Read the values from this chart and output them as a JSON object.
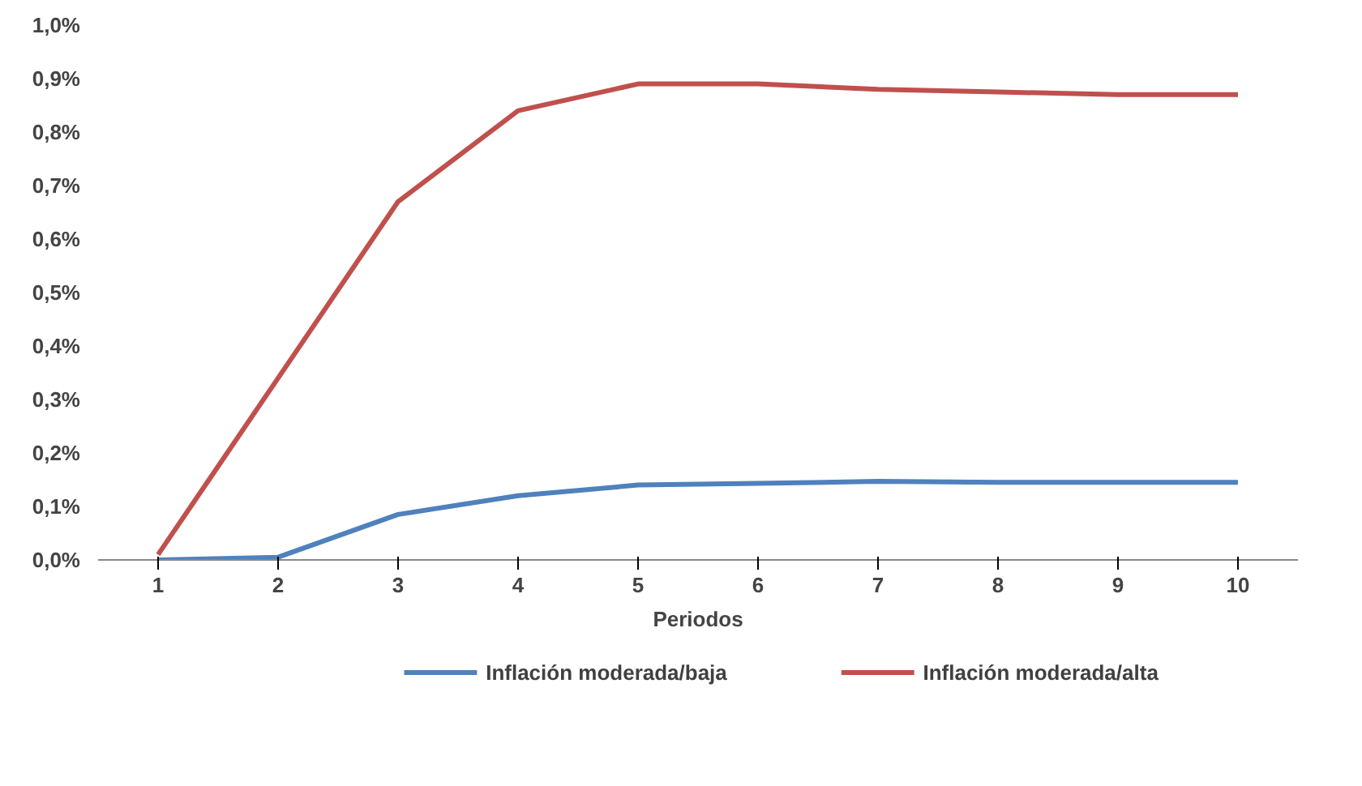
{
  "chart_data": {
    "type": "line",
    "xlabel": "Periodos",
    "x": [
      1,
      2,
      3,
      4,
      5,
      6,
      7,
      8,
      9,
      10
    ],
    "xlim": [
      0.5,
      10.5
    ],
    "xticks": [
      1,
      2,
      3,
      4,
      5,
      6,
      7,
      8,
      9,
      10
    ],
    "ylim": [
      0,
      1.0
    ],
    "yticks": [
      {
        "value": 0,
        "label": "0,0%"
      },
      {
        "value": 0.1,
        "label": "0,1%"
      },
      {
        "value": 0.2,
        "label": "0,2%"
      },
      {
        "value": 0.3,
        "label": "0,3%"
      },
      {
        "value": 0.4,
        "label": "0,4%"
      },
      {
        "value": 0.5,
        "label": "0,5%"
      },
      {
        "value": 0.6,
        "label": "0,6%"
      },
      {
        "value": 0.7,
        "label": "0,7%"
      },
      {
        "value": 0.8,
        "label": "0,8%"
      },
      {
        "value": 0.9,
        "label": "0,9%"
      },
      {
        "value": 1.0,
        "label": "1,0%"
      }
    ],
    "series": [
      {
        "name": "Inflación moderada/baja",
        "color": "#4f81bd",
        "values": [
          0.0,
          0.005,
          0.085,
          0.12,
          0.14,
          0.143,
          0.147,
          0.145,
          0.145,
          0.145
        ]
      },
      {
        "name": "Inflación moderada/alta",
        "color": "#c0504d",
        "values": [
          0.01,
          0.34,
          0.67,
          0.84,
          0.89,
          0.89,
          0.88,
          0.875,
          0.87,
          0.87
        ]
      }
    ],
    "legend": "bottom",
    "grid": false,
    "marker": "none",
    "line_style": "solid"
  }
}
